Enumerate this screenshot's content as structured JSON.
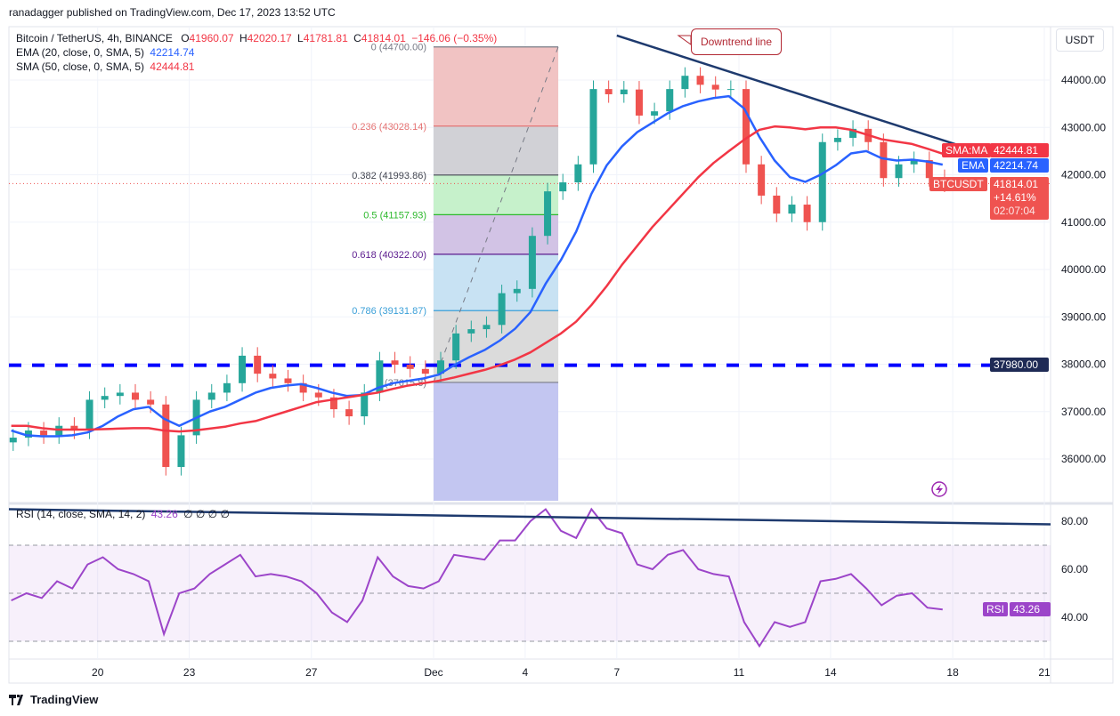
{
  "header": {
    "published": "ranadagger published on TradingView.com, Dec 17, 2023 13:52 UTC",
    "symbol": "Bitcoin / TetherUS, 4h, BINANCE",
    "open_label": "O",
    "open": "41960.07",
    "high_label": "H",
    "high": "42020.17",
    "low_label": "L",
    "low": "41781.81",
    "close_label": "C",
    "close": "41814.01",
    "change": "−146.06 (−0.35%)",
    "ema_legend": "EMA (20, close, 0, SMA, 5)",
    "ema_value": "42214.74",
    "sma_legend": "SMA (50, close, 0, SMA, 5)",
    "sma_value": "42444.81",
    "rsi_legend": "RSI (14, close, SMA, 14, 2)",
    "rsi_value": "43.26",
    "rsi_extra": "∅ ∅ ∅ ∅"
  },
  "currency_button": "USDT",
  "price_tags": {
    "sma_name": "SMA:MA",
    "sma_value": "42444.81",
    "ema_name": "EMA",
    "ema_value": "42214.74",
    "symbol_name": "BTCUSDT",
    "last_price": "41814.01",
    "last_change": "+14.61%",
    "countdown": "02:07:04",
    "support": "37980.00",
    "rsi_name": "RSI",
    "rsi_value": "43.26"
  },
  "annotation": "Downtrend line",
  "logo": "TradingView",
  "colors": {
    "up": "#26a69a",
    "down": "#ef5350",
    "ema": "#2962ff",
    "sma": "#f23645",
    "rsi": "#9c45c9",
    "trendline": "#1e3a6e",
    "support": "#0000ff"
  },
  "chart_data": [
    {
      "type": "candlestick",
      "interval": "12h (approximate reading of a 4h chart)",
      "y_ticks": [
        "44000.00",
        "43000.00",
        "42000.00",
        "41000.00",
        "40000.00",
        "39000.00",
        "38000.00",
        "37000.00",
        "36000.00"
      ],
      "x_ticks": [
        {
          "label": "20",
          "date": "2023-11-20"
        },
        {
          "label": "23",
          "date": "2023-11-23"
        },
        {
          "label": "27",
          "date": "2023-11-27"
        },
        {
          "label": "Dec",
          "date": "2023-12-01"
        },
        {
          "label": "4",
          "date": "2023-12-04"
        },
        {
          "label": "7",
          "date": "2023-12-07"
        },
        {
          "label": "11",
          "date": "2023-12-11"
        },
        {
          "label": "14",
          "date": "2023-12-14"
        },
        {
          "label": "18",
          "date": "2023-12-18"
        },
        {
          "label": "21",
          "date": "2023-12-21"
        }
      ],
      "start": "2023-11-17 00:00",
      "step_hours": 12,
      "close": [
        36450,
        36600,
        36500,
        36700,
        36600,
        37250,
        37330,
        37400,
        37250,
        37150,
        35830,
        36500,
        37250,
        37400,
        37600,
        38180,
        37800,
        37700,
        37600,
        37400,
        37300,
        37050,
        36900,
        37400,
        38080,
        37990,
        37900,
        37800,
        38080,
        38650,
        38740,
        38830,
        39500,
        39590,
        40710,
        41650,
        41840,
        42220,
        43810,
        43700,
        43800,
        43250,
        43340,
        43810,
        44090,
        43900,
        43800,
        43810,
        42220,
        41560,
        41180,
        41370,
        41000,
        42690,
        42780,
        42970,
        42690,
        41930,
        42220,
        42310,
        41930,
        41814
      ],
      "series": [
        {
          "name": "EMA (20, close, 0, SMA, 5)",
          "values": [
            36600,
            36500,
            36480,
            36480,
            36500,
            36560,
            36700,
            36900,
            37050,
            37100,
            36850,
            36700,
            36850,
            37000,
            37100,
            37250,
            37400,
            37500,
            37550,
            37580,
            37500,
            37400,
            37330,
            37350,
            37500,
            37600,
            37650,
            37700,
            37780,
            37980,
            38150,
            38300,
            38500,
            38750,
            39100,
            39700,
            40200,
            40800,
            41600,
            42200,
            42600,
            42900,
            43100,
            43300,
            43450,
            43550,
            43620,
            43660,
            43400,
            42800,
            42300,
            41950,
            41850,
            42000,
            42200,
            42450,
            42500,
            42350,
            42300,
            42320,
            42280,
            42214
          ]
        },
        {
          "name": "SMA (50, close, 0, SMA, 5)",
          "values": [
            36700,
            36700,
            36650,
            36620,
            36620,
            36620,
            36630,
            36640,
            36650,
            36650,
            36600,
            36580,
            36600,
            36640,
            36680,
            36750,
            36800,
            36900,
            37000,
            37100,
            37200,
            37250,
            37300,
            37350,
            37400,
            37480,
            37550,
            37600,
            37650,
            37720,
            37800,
            37880,
            37980,
            38100,
            38250,
            38450,
            38650,
            38900,
            39250,
            39650,
            40100,
            40500,
            40900,
            41250,
            41600,
            41950,
            42250,
            42500,
            42740,
            42950,
            43020,
            43000,
            42960,
            43000,
            43000,
            42950,
            42850,
            42750,
            42700,
            42650,
            42550,
            42444
          ]
        }
      ],
      "support_level": 37980,
      "downtrend_line": [
        {
          "date": "2023-12-07 00:00",
          "price": 44940
        },
        {
          "date": "2023-12-19 02:00",
          "price": 42440
        }
      ],
      "fibonacci": {
        "from": "2023-12-01 00:00",
        "to": "2023-12-05 02:00",
        "levels": [
          {
            "ratio": "0",
            "price": "44700.00",
            "color": "#787b86",
            "fill": "#f0c0c0"
          },
          {
            "ratio": "0.236",
            "price": "43028.14",
            "color": "#e57373",
            "fill": "#cfcfd4"
          },
          {
            "ratio": "0.382",
            "price": "41993.86",
            "color": "#434651",
            "fill": "#c3f0c8"
          },
          {
            "ratio": "0.5",
            "price": "41157.93",
            "color": "#2cb82c",
            "fill": "#d0c0e4"
          },
          {
            "ratio": "0.618",
            "price": "40322.00",
            "color": "#5b1a8e",
            "fill": "#c5e0f2"
          },
          {
            "ratio": "0.786",
            "price": "39131.87",
            "color": "#3a9fd8",
            "fill": "#d9d9d9"
          },
          {
            "ratio": "1",
            "price": "37615.8",
            "color": "#787b86",
            "fill": "#c0c3f0"
          }
        ]
      }
    },
    {
      "type": "line",
      "title": "RSI (14, close, SMA, 14, 2)",
      "y_ticks": [
        "80.00",
        "60.00",
        "40.00"
      ],
      "bands": {
        "upper": 70,
        "middle": 50,
        "lower": 30
      },
      "values": [
        47,
        50,
        48,
        55,
        52,
        62,
        65,
        60,
        58,
        55,
        33,
        50,
        52,
        58,
        62,
        66,
        57,
        58,
        57,
        55,
        50,
        42,
        38,
        47,
        65,
        57,
        53,
        52,
        55,
        66,
        65,
        64,
        72,
        72,
        80,
        85,
        76,
        73,
        85,
        77,
        75,
        62,
        60,
        66,
        68,
        60,
        58,
        57,
        38,
        28,
        38,
        36,
        38,
        55,
        56,
        58,
        52,
        45,
        49,
        50,
        44,
        43.26
      ],
      "trendline": [
        {
          "date": "2023-11-17 00:00",
          "value": 85
        },
        {
          "date": "2023-12-21 00:00",
          "value": 78.7
        }
      ]
    }
  ]
}
